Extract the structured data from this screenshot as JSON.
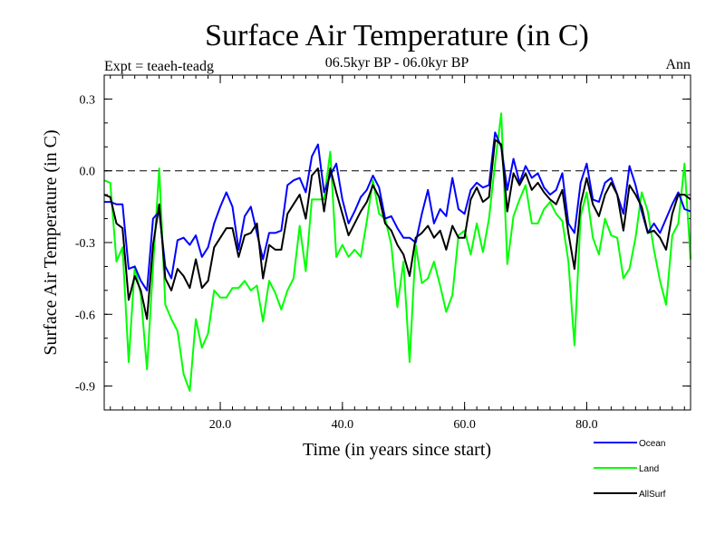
{
  "chart_data": {
    "type": "line",
    "title": "Surface Air Temperature (in C)",
    "subtitle": "06.5kyr BP - 06.0kyr BP",
    "left_label": "Expt = teaeh-teadg",
    "right_label": "Ann",
    "xlabel": "Time (in years since start)",
    "ylabel": "Surface Air Temperature (in C)",
    "xlim": [
      1,
      97
    ],
    "ylim": [
      -1.0,
      0.4
    ],
    "xticks": [
      20,
      40,
      60,
      80
    ],
    "xtick_labels": [
      "20.0",
      "40.0",
      "60.0",
      "80.0"
    ],
    "yticks": [
      0.3,
      0.0,
      -0.3,
      -0.6,
      -0.9
    ],
    "ytick_labels": [
      "0.3",
      "0.0",
      "-0.3",
      "-0.6",
      "-0.9"
    ],
    "reference_line": {
      "y": 0.0,
      "style": "dashed"
    },
    "x_start": 1,
    "series": [
      {
        "name": "Ocean",
        "color": "#0000ff",
        "values": [
          -0.13,
          -0.13,
          -0.14,
          -0.14,
          -0.41,
          -0.4,
          -0.46,
          -0.5,
          -0.2,
          -0.17,
          -0.4,
          -0.45,
          -0.29,
          -0.28,
          -0.31,
          -0.27,
          -0.36,
          -0.32,
          -0.22,
          -0.15,
          -0.09,
          -0.15,
          -0.33,
          -0.19,
          -0.15,
          -0.26,
          -0.37,
          -0.26,
          -0.26,
          -0.25,
          -0.06,
          -0.04,
          -0.03,
          -0.09,
          0.06,
          0.11,
          -0.09,
          -0.02,
          0.03,
          -0.12,
          -0.22,
          -0.17,
          -0.11,
          -0.08,
          -0.02,
          -0.07,
          -0.2,
          -0.19,
          -0.24,
          -0.28,
          -0.28,
          -0.3,
          -0.18,
          -0.08,
          -0.22,
          -0.16,
          -0.19,
          -0.03,
          -0.16,
          -0.18,
          -0.08,
          -0.05,
          -0.07,
          -0.06,
          0.16,
          0.1,
          -0.08,
          0.05,
          -0.05,
          0.02,
          -0.03,
          -0.01,
          -0.07,
          -0.1,
          -0.08,
          -0.01,
          -0.22,
          -0.26,
          -0.05,
          0.03,
          -0.12,
          -0.13,
          -0.05,
          -0.03,
          -0.1,
          -0.18,
          0.02,
          -0.06,
          -0.17,
          -0.26,
          -0.22,
          -0.26,
          -0.2,
          -0.14,
          -0.09,
          -0.16,
          -0.17
        ]
      },
      {
        "name": "Land",
        "color": "#00ff00",
        "values": [
          -0.04,
          -0.05,
          -0.38,
          -0.32,
          -0.8,
          -0.4,
          -0.52,
          -0.83,
          -0.4,
          0.01,
          -0.56,
          -0.62,
          -0.67,
          -0.85,
          -0.92,
          -0.62,
          -0.74,
          -0.68,
          -0.5,
          -0.53,
          -0.53,
          -0.49,
          -0.49,
          -0.46,
          -0.5,
          -0.48,
          -0.63,
          -0.46,
          -0.51,
          -0.58,
          -0.5,
          -0.45,
          -0.23,
          -0.42,
          -0.12,
          -0.12,
          -0.12,
          0.08,
          -0.36,
          -0.31,
          -0.36,
          -0.33,
          -0.36,
          -0.21,
          -0.04,
          -0.18,
          -0.2,
          -0.31,
          -0.57,
          -0.38,
          -0.8,
          -0.31,
          -0.47,
          -0.45,
          -0.38,
          -0.48,
          -0.59,
          -0.52,
          -0.27,
          -0.25,
          -0.35,
          -0.22,
          -0.34,
          -0.2,
          0.03,
          0.24,
          -0.39,
          -0.19,
          -0.12,
          -0.06,
          -0.22,
          -0.22,
          -0.16,
          -0.13,
          -0.18,
          -0.21,
          -0.38,
          -0.73,
          -0.19,
          -0.09,
          -0.28,
          -0.35,
          -0.2,
          -0.27,
          -0.28,
          -0.45,
          -0.41,
          -0.28,
          -0.09,
          -0.17,
          -0.33,
          -0.46,
          -0.56,
          -0.27,
          -0.22,
          0.03,
          -0.37
        ]
      },
      {
        "name": "AllSurf",
        "color": "#000000",
        "values": [
          -0.1,
          -0.11,
          -0.22,
          -0.24,
          -0.54,
          -0.44,
          -0.5,
          -0.62,
          -0.31,
          -0.14,
          -0.45,
          -0.5,
          -0.41,
          -0.44,
          -0.49,
          -0.37,
          -0.49,
          -0.46,
          -0.32,
          -0.28,
          -0.24,
          -0.24,
          -0.36,
          -0.27,
          -0.26,
          -0.22,
          -0.45,
          -0.31,
          -0.33,
          -0.33,
          -0.18,
          -0.14,
          -0.1,
          -0.2,
          -0.02,
          0.01,
          -0.17,
          0.01,
          -0.09,
          -0.18,
          -0.27,
          -0.22,
          -0.17,
          -0.13,
          -0.06,
          -0.11,
          -0.22,
          -0.25,
          -0.31,
          -0.35,
          -0.44,
          -0.28,
          -0.26,
          -0.23,
          -0.28,
          -0.25,
          -0.33,
          -0.23,
          -0.28,
          -0.28,
          -0.12,
          -0.07,
          -0.13,
          -0.11,
          0.13,
          0.11,
          -0.17,
          -0.01,
          -0.06,
          -0.01,
          -0.08,
          -0.05,
          -0.09,
          -0.12,
          -0.14,
          -0.08,
          -0.26,
          -0.41,
          -0.14,
          -0.03,
          -0.14,
          -0.19,
          -0.1,
          -0.05,
          -0.1,
          -0.25,
          -0.06,
          -0.1,
          -0.15,
          -0.26,
          -0.25,
          -0.28,
          -0.33,
          -0.18,
          -0.1,
          -0.1,
          -0.12
        ]
      }
    ],
    "legend": [
      "Ocean",
      "Land",
      "AllSurf"
    ],
    "legend_position": "bottom-right"
  }
}
